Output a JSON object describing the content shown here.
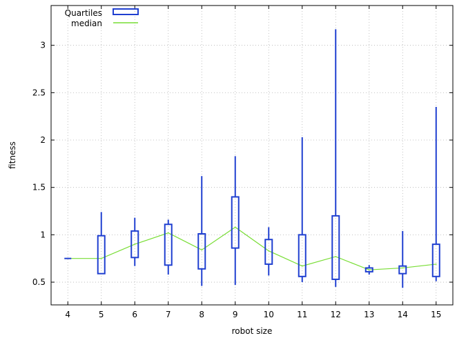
{
  "chart_data": {
    "type": "box",
    "xlabel": "robot size",
    "ylabel": "fitness",
    "x": [
      4,
      5,
      6,
      7,
      8,
      9,
      10,
      11,
      12,
      13,
      14,
      15
    ],
    "x_ticks": [
      "4",
      "5",
      "6",
      "7",
      "8",
      "9",
      "10",
      "11",
      "12",
      "13",
      "14",
      "15"
    ],
    "y_ticks": [
      "0.5",
      "1",
      "1.5",
      "2",
      "2.5",
      "3"
    ],
    "ylim": [
      0.26,
      3.42
    ],
    "xlim": [
      3.5,
      15.5
    ],
    "grid": true,
    "legend_position": "top-left",
    "series": [
      {
        "name": "Quartiles",
        "color": "#1f3fd0",
        "boxes": [
          {
            "x": 4,
            "min": 0.75,
            "q1": 0.75,
            "q3": 0.75,
            "max": 0.75
          },
          {
            "x": 5,
            "min": 0.59,
            "q1": 0.59,
            "q3": 0.99,
            "max": 1.24
          },
          {
            "x": 6,
            "min": 0.67,
            "q1": 0.76,
            "q3": 1.04,
            "max": 1.18
          },
          {
            "x": 7,
            "min": 0.58,
            "q1": 0.68,
            "q3": 1.11,
            "max": 1.16
          },
          {
            "x": 8,
            "min": 0.46,
            "q1": 0.64,
            "q3": 1.01,
            "max": 1.62
          },
          {
            "x": 9,
            "min": 0.47,
            "q1": 0.86,
            "q3": 1.4,
            "max": 1.83
          },
          {
            "x": 10,
            "min": 0.57,
            "q1": 0.69,
            "q3": 0.95,
            "max": 1.08
          },
          {
            "x": 11,
            "min": 0.5,
            "q1": 0.56,
            "q3": 1.0,
            "max": 2.03
          },
          {
            "x": 12,
            "min": 0.45,
            "q1": 0.53,
            "q3": 1.2,
            "max": 3.17
          },
          {
            "x": 13,
            "min": 0.58,
            "q1": 0.61,
            "q3": 0.65,
            "max": 0.68
          },
          {
            "x": 14,
            "min": 0.44,
            "q1": 0.59,
            "q3": 0.67,
            "max": 1.04
          },
          {
            "x": 15,
            "min": 0.51,
            "q1": 0.56,
            "q3": 0.9,
            "max": 2.35
          }
        ]
      },
      {
        "name": "median",
        "color": "#77dd33",
        "values": [
          0.75,
          0.75,
          0.9,
          1.02,
          0.84,
          1.08,
          0.83,
          0.67,
          0.77,
          0.63,
          0.65,
          0.69
        ]
      }
    ]
  }
}
